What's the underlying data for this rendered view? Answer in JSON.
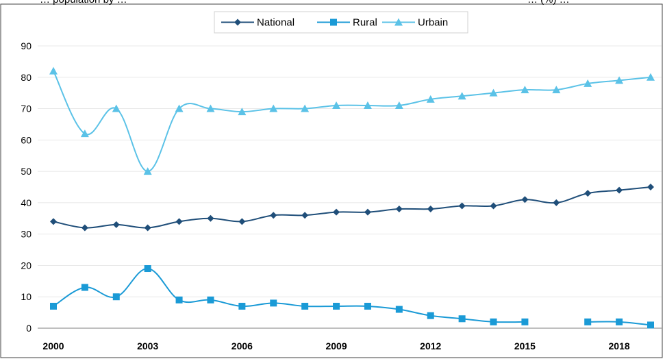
{
  "chart_data": {
    "type": "line",
    "title": "",
    "title_fragment_left": "… population by …",
    "title_fragment_right": "… (%) …",
    "xlabel": "",
    "ylabel": "",
    "x": [
      2000,
      2001,
      2002,
      2003,
      2004,
      2005,
      2006,
      2007,
      2008,
      2009,
      2010,
      2011,
      2012,
      2013,
      2014,
      2015,
      2016,
      2017,
      2018,
      2019
    ],
    "xticks": [
      2000,
      2003,
      2006,
      2009,
      2012,
      2015,
      2018
    ],
    "yticks": [
      0,
      10,
      20,
      30,
      40,
      50,
      60,
      70,
      80,
      90
    ],
    "xlim": [
      2000,
      2019
    ],
    "ylim": [
      0,
      90
    ],
    "grid": "horizontal",
    "legend_position": "top-center",
    "series": [
      {
        "name": "National",
        "color": "#1f4e79",
        "marker": "diamond",
        "values": [
          34,
          32,
          33,
          32,
          34,
          35,
          34,
          36,
          36,
          37,
          37,
          38,
          38,
          39,
          39,
          41,
          40,
          43,
          44,
          45
        ]
      },
      {
        "name": "Rural",
        "color": "#1a9ad6",
        "marker": "square",
        "values": [
          7,
          13,
          10,
          19,
          9,
          9,
          7,
          8,
          7,
          7,
          7,
          6,
          4,
          3,
          2,
          2,
          null,
          2,
          2,
          1
        ]
      },
      {
        "name": "Urbain",
        "color": "#5bc2e7",
        "marker": "triangle",
        "values": [
          82,
          62,
          70,
          50,
          70,
          70,
          69,
          70,
          70,
          71,
          71,
          71,
          73,
          74,
          75,
          76,
          76,
          78,
          79,
          80
        ]
      }
    ]
  }
}
